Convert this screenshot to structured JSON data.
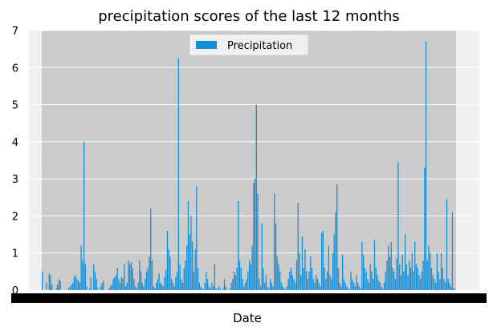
{
  "chart_data": {
    "type": "bar",
    "title": "precipitation scores of the last 12 months",
    "xlabel": "Date",
    "ylabel": "",
    "ylim": [
      0,
      7
    ],
    "yticks": [
      0,
      1,
      2,
      3,
      4,
      5,
      6,
      7
    ],
    "grid": true,
    "legend_position": "top-center",
    "x_tick_labels_note": "x tick labels are overlapping date strings rendered as an illegible black band",
    "series": [
      {
        "name": "Precipitation",
        "color": "#138fd8",
        "values": [
          0.5,
          0,
          0,
          0.2,
          0,
          0.45,
          0.4,
          0.15,
          0,
          0,
          0.05,
          0.15,
          0.3,
          0.25,
          0,
          0,
          0,
          0.02,
          0,
          0.05,
          0.1,
          0.15,
          0.2,
          0.35,
          0.4,
          0.3,
          0.25,
          0.2,
          1.2,
          0.8,
          4.0,
          0.7,
          0.1,
          0,
          0.05,
          0.35,
          0,
          0.7,
          0.5,
          0.3,
          0.05,
          0,
          0.1,
          0.2,
          0.25,
          0,
          0,
          0.02,
          0.05,
          0.1,
          0.15,
          0.3,
          0.35,
          0.4,
          0.6,
          0.3,
          0.2,
          0.35,
          0.3,
          0.7,
          0.1,
          0.2,
          0.8,
          0.7,
          0.75,
          0.6,
          0.3,
          0.1,
          0.05,
          0.2,
          0.8,
          0.5,
          0.2,
          0.1,
          0.3,
          0.5,
          0.6,
          0.9,
          2.2,
          0.8,
          0.1,
          0.05,
          0.2,
          0.3,
          0.45,
          0.2,
          0.15,
          0.1,
          0.35,
          0.55,
          1.6,
          1.1,
          0.9,
          0.3,
          0.2,
          0.1,
          0.35,
          0.5,
          6.25,
          0.7,
          0.3,
          0.2,
          0.6,
          0.8,
          1.2,
          2.4,
          1.5,
          2.0,
          1.3,
          0.5,
          1.1,
          2.8,
          0.6,
          0.2,
          0.1,
          0.05,
          0.02,
          0.2,
          0.5,
          0.3,
          0.1,
          0.05,
          0.2,
          0.1,
          0.7,
          0.05,
          0.02,
          0.1,
          0.05,
          0,
          0.05,
          0.3,
          0.1,
          0.02,
          0,
          0.05,
          0.2,
          0.3,
          0.5,
          0.4,
          0.6,
          2.4,
          0.8,
          0.6,
          0.3,
          0.1,
          0.2,
          0.3,
          0.5,
          0.8,
          0.7,
          1.2,
          2.9,
          3.0,
          5.0,
          2.6,
          0.3,
          0.1,
          1.8,
          0.6,
          0.2,
          0.4,
          0.1,
          0.05,
          0.3,
          0.2,
          0.1,
          2.6,
          1.8,
          0.9,
          0.7,
          0.5,
          0.2,
          0.1,
          0.05,
          0.02,
          0.1,
          0.3,
          0.5,
          0.6,
          0.4,
          0.3,
          0.2,
          0.8,
          2.35,
          1.0,
          0.4,
          1.45,
          0.6,
          1.1,
          0.5,
          0.3,
          0.5,
          0.9,
          0.6,
          0.3,
          0.2,
          0.4,
          0.3,
          0.2,
          0.1,
          1.55,
          1.6,
          0.6,
          0.3,
          0.5,
          1.2,
          0.4,
          0.3,
          1.0,
          1.5,
          2.1,
          2.85,
          0.6,
          0.2,
          0.1,
          0.95,
          0.3,
          0.2,
          0.1,
          0.05,
          0.02,
          0.5,
          0.3,
          0.2,
          0.1,
          0.4,
          0.2,
          0.1,
          0.05,
          1.3,
          0.95,
          0.6,
          0.5,
          0.3,
          0.2,
          0.7,
          0.5,
          0.3,
          1.35,
          0.6,
          0.4,
          0.25,
          0.2,
          0.1,
          0.05,
          0.2,
          0.5,
          0.8,
          1.2,
          0.9,
          1.3,
          0.6,
          0.5,
          0.3,
          0.85,
          3.45,
          0.7,
          0.4,
          0.95,
          0.5,
          1.5,
          0.7,
          0.4,
          0.8,
          0.6,
          1.0,
          0.5,
          1.3,
          0.7,
          0.6,
          0.4,
          0.3,
          0.5,
          0.8,
          3.3,
          6.7,
          0.8,
          1.2,
          1.0,
          0.6,
          0.4,
          0.3,
          0.2,
          1.0,
          0.5,
          0.3,
          1.0,
          0.6,
          0.3,
          0.2,
          2.45,
          0.3,
          0.2,
          0.1,
          2.1,
          0.05,
          0.02
        ]
      }
    ]
  }
}
